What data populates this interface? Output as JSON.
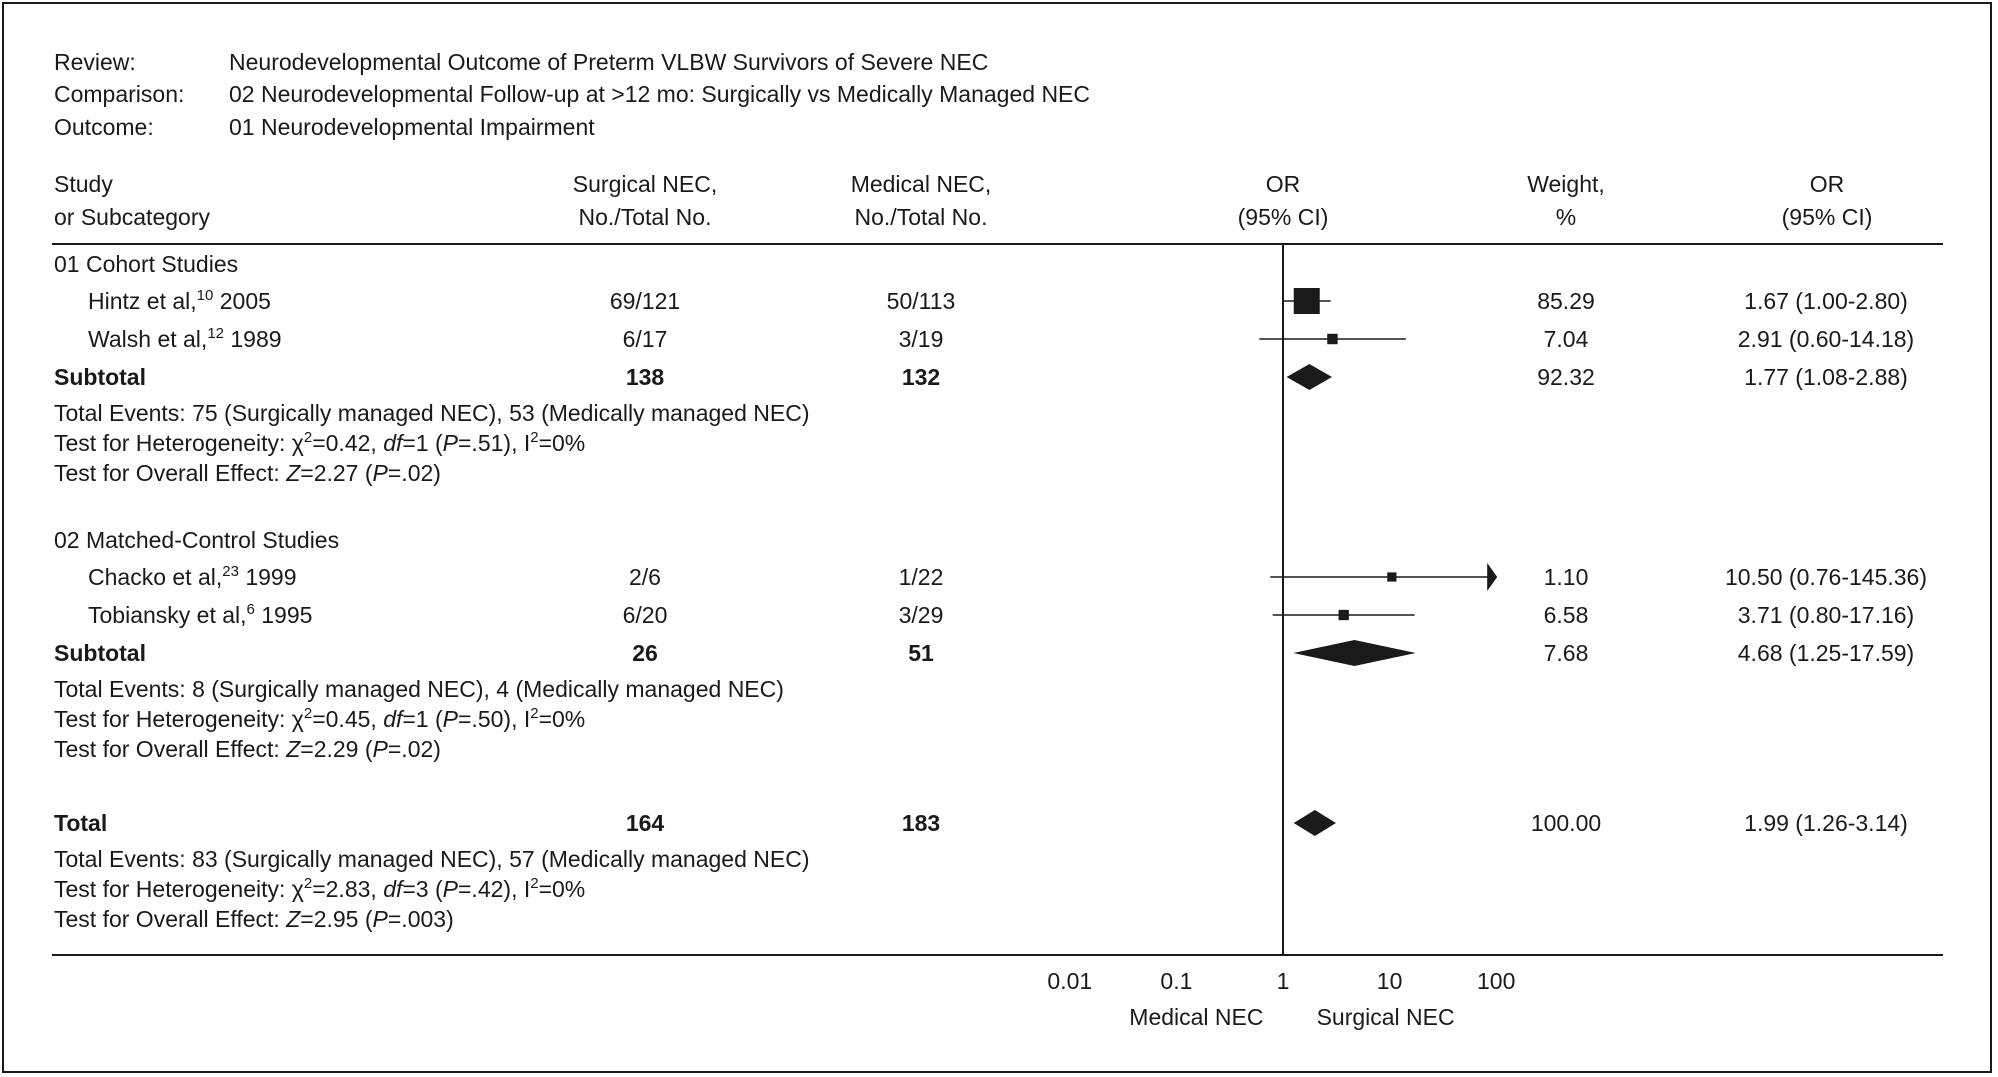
{
  "chart_data": {
    "type": "forest",
    "header": {
      "review_label": "Review:",
      "review_value": "Neurodevelopmental Outcome of Preterm VLBW Survivors of Severe NEC",
      "comparison_label": "Comparison:",
      "comparison_value": "02 Neurodevelopmental Follow-up at >12 mo: Surgically vs Medically Managed NEC",
      "outcome_label": "Outcome:",
      "outcome_value": "01 Neurodevelopmental Impairment"
    },
    "columns": {
      "study": [
        "Study",
        "or Subcategory"
      ],
      "surgical": [
        "Surgical NEC,",
        "No./Total No."
      ],
      "medical": [
        "Medical NEC,",
        "No./Total No."
      ],
      "or_plot": [
        "OR",
        "(95% CI)"
      ],
      "weight": [
        "Weight,",
        "%"
      ],
      "or_text": [
        "OR",
        "(95% CI)"
      ]
    },
    "groups": [
      {
        "title": "01 Cohort Studies",
        "studies": [
          {
            "author": "Hintz et al,",
            "ref": "10",
            "year": "2005",
            "surgical": "69/121",
            "medical": "50/113",
            "weight": "85.29",
            "or_text": "1.67 (1.00-2.80)",
            "or": 1.67,
            "lo": 1.0,
            "hi": 2.8,
            "arrow": false
          },
          {
            "author": "Walsh et al,",
            "ref": "12",
            "year": "1989",
            "surgical": "6/17",
            "medical": "3/19",
            "weight": "7.04",
            "or_text": "2.91 (0.60-14.18)",
            "or": 2.91,
            "lo": 0.6,
            "hi": 14.18,
            "arrow": false
          }
        ],
        "subtotal": {
          "label": "Subtotal",
          "surgical": "138",
          "medical": "132",
          "weight": "92.32",
          "or_text": "1.77 (1.08-2.88)",
          "or": 1.77,
          "lo": 1.08,
          "hi": 2.88
        },
        "stats": [
          [
            {
              "t": "Total Events: 75 (Surgically managed NEC), 53 (Medically managed NEC)"
            }
          ],
          [
            {
              "t": "Test for Heterogeneity: χ"
            },
            {
              "t": "2",
              "sup": true
            },
            {
              "t": "=0.42, "
            },
            {
              "t": "df",
              "i": true
            },
            {
              "t": "=1 ("
            },
            {
              "t": "P",
              "i": true
            },
            {
              "t": "=.51), I"
            },
            {
              "t": "2",
              "sup": true
            },
            {
              "t": "=0%"
            }
          ],
          [
            {
              "t": "Test for Overall Effect: "
            },
            {
              "t": "Z",
              "i": true
            },
            {
              "t": "=2.27 ("
            },
            {
              "t": "P",
              "i": true
            },
            {
              "t": "=.02)"
            }
          ]
        ]
      },
      {
        "title": "02 Matched-Control Studies",
        "studies": [
          {
            "author": "Chacko et al,",
            "ref": "23",
            "year": "1999",
            "surgical": "2/6",
            "medical": "1/22",
            "weight": "1.10",
            "or_text": "10.50 (0.76-145.36)",
            "or": 10.5,
            "lo": 0.76,
            "hi": 145.36,
            "arrow": true
          },
          {
            "author": "Tobiansky et al,",
            "ref": "6",
            "year": "1995",
            "surgical": "6/20",
            "medical": "3/29",
            "weight": "6.58",
            "or_text": "3.71 (0.80-17.16)",
            "or": 3.71,
            "lo": 0.8,
            "hi": 17.16,
            "arrow": false
          }
        ],
        "subtotal": {
          "label": "Subtotal",
          "surgical": "26",
          "medical": "51",
          "weight": "7.68",
          "or_text": "4.68 (1.25-17.59)",
          "or": 4.68,
          "lo": 1.25,
          "hi": 17.59
        },
        "stats": [
          [
            {
              "t": "Total Events: 8 (Surgically managed NEC), 4 (Medically managed NEC)"
            }
          ],
          [
            {
              "t": "Test for Heterogeneity: χ"
            },
            {
              "t": "2",
              "sup": true
            },
            {
              "t": "=0.45, "
            },
            {
              "t": "df",
              "i": true
            },
            {
              "t": "=1 ("
            },
            {
              "t": "P",
              "i": true
            },
            {
              "t": "=.50), I"
            },
            {
              "t": "2",
              "sup": true
            },
            {
              "t": "=0%"
            }
          ],
          [
            {
              "t": "Test for Overall Effect: "
            },
            {
              "t": "Z",
              "i": true
            },
            {
              "t": "=2.29 ("
            },
            {
              "t": "P",
              "i": true
            },
            {
              "t": "=.02)"
            }
          ]
        ]
      }
    ],
    "total": {
      "label": "Total",
      "surgical": "164",
      "medical": "183",
      "weight": "100.00",
      "or_text": "1.99 (1.26-3.14)",
      "or": 1.99,
      "lo": 1.26,
      "hi": 3.14,
      "stats": [
        [
          {
            "t": "Total Events: 83 (Surgically managed NEC), 57 (Medically managed NEC)"
          }
        ],
        [
          {
            "t": "Test for Heterogeneity: χ"
          },
          {
            "t": "2",
            "sup": true
          },
          {
            "t": "=2.83, "
          },
          {
            "t": "df",
            "i": true
          },
          {
            "t": "=3 ("
          },
          {
            "t": "P",
            "i": true
          },
          {
            "t": "=.42), I"
          },
          {
            "t": "2",
            "sup": true
          },
          {
            "t": "=0%"
          }
        ],
        [
          {
            "t": "Test for Overall Effect: "
          },
          {
            "t": "Z",
            "i": true
          },
          {
            "t": "=2.95 ("
          },
          {
            "t": "P",
            "i": true
          },
          {
            "t": "=.003)"
          }
        ]
      ]
    },
    "x_axis": {
      "scale": "log",
      "ticks": [
        0.01,
        0.1,
        1,
        10,
        100
      ],
      "tick_labels": [
        "0.01",
        "0.1",
        "1",
        "10",
        "100"
      ],
      "xlim": [
        0.01,
        100
      ],
      "left_label": "Medical NEC",
      "right_label": "Surgical NEC"
    },
    "colors": {
      "ink": "#1a1a1a",
      "background": "#ffffff"
    }
  }
}
